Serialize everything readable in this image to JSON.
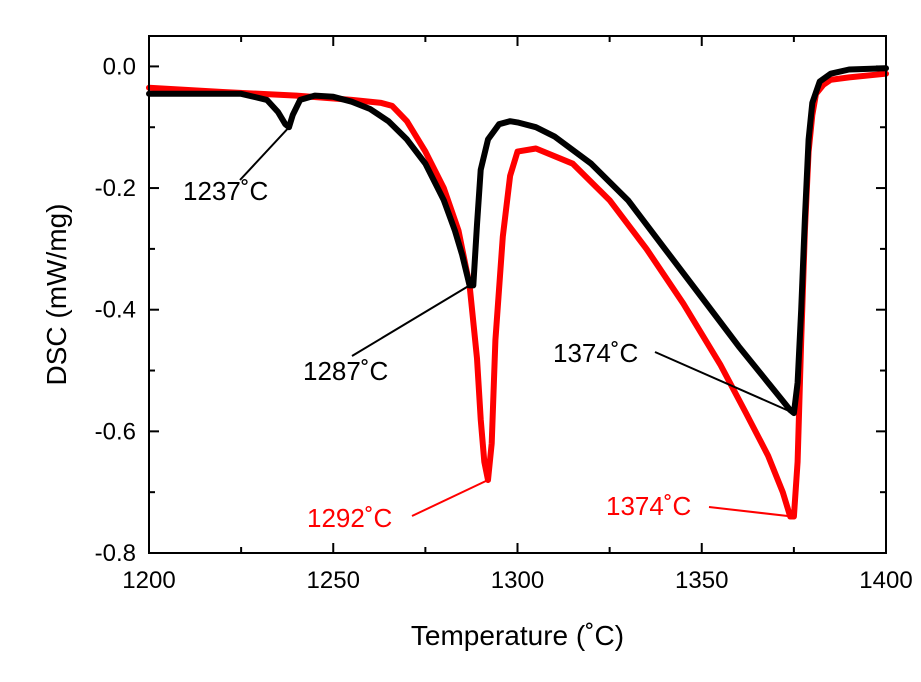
{
  "chart_data": {
    "type": "line",
    "title": "",
    "xlabel": "Temperature (˚C)",
    "ylabel": "DSC (mW/mg)",
    "xlim": [
      1200,
      1400
    ],
    "ylim": [
      -0.8,
      0.05
    ],
    "x_ticks": [
      1200,
      1250,
      1300,
      1350,
      1400
    ],
    "x_tick_labels": [
      "1200",
      "1250",
      "1300",
      "1350",
      "1400"
    ],
    "y_ticks": [
      -0.8,
      -0.6,
      -0.4,
      -0.2,
      0.0
    ],
    "y_tick_labels": [
      "-0.8",
      "-0.6",
      "-0.4",
      "-0.2",
      "0.0"
    ],
    "grid": false,
    "legend": "none",
    "series": [
      {
        "color": "#000000",
        "x": [
          1200,
          1215,
          1225,
          1232,
          1235,
          1237,
          1238,
          1239,
          1241,
          1245,
          1250,
          1255,
          1260,
          1265,
          1270,
          1275,
          1280,
          1283,
          1285,
          1287,
          1288,
          1289,
          1290,
          1292,
          1295,
          1298,
          1300,
          1305,
          1310,
          1320,
          1330,
          1340,
          1350,
          1360,
          1368,
          1372,
          1374,
          1375,
          1376,
          1377,
          1378,
          1379,
          1380,
          1382,
          1385,
          1390,
          1400
        ],
        "y": [
          -0.045,
          -0.045,
          -0.045,
          -0.055,
          -0.075,
          -0.095,
          -0.1,
          -0.08,
          -0.055,
          -0.048,
          -0.05,
          -0.058,
          -0.07,
          -0.09,
          -0.12,
          -0.16,
          -0.22,
          -0.27,
          -0.31,
          -0.36,
          -0.36,
          -0.26,
          -0.17,
          -0.12,
          -0.095,
          -0.09,
          -0.092,
          -0.1,
          -0.115,
          -0.16,
          -0.22,
          -0.3,
          -0.38,
          -0.46,
          -0.52,
          -0.55,
          -0.565,
          -0.57,
          -0.52,
          -0.4,
          -0.25,
          -0.12,
          -0.06,
          -0.025,
          -0.012,
          -0.005,
          -0.003
        ]
      },
      {
        "color": "#ff0000",
        "x": [
          1200,
          1220,
          1240,
          1255,
          1263,
          1266,
          1270,
          1275,
          1280,
          1284,
          1287,
          1289,
          1290,
          1291,
          1292,
          1293,
          1294,
          1296,
          1298,
          1300,
          1305,
          1315,
          1325,
          1335,
          1345,
          1355,
          1362,
          1368,
          1372,
          1374,
          1375,
          1376,
          1377,
          1378,
          1379,
          1380,
          1381,
          1383,
          1385,
          1390,
          1400
        ],
        "y": [
          -0.035,
          -0.042,
          -0.048,
          -0.055,
          -0.06,
          -0.065,
          -0.09,
          -0.14,
          -0.2,
          -0.27,
          -0.36,
          -0.48,
          -0.58,
          -0.65,
          -0.68,
          -0.62,
          -0.45,
          -0.28,
          -0.18,
          -0.14,
          -0.135,
          -0.16,
          -0.22,
          -0.3,
          -0.39,
          -0.49,
          -0.57,
          -0.64,
          -0.7,
          -0.74,
          -0.74,
          -0.65,
          -0.45,
          -0.27,
          -0.14,
          -0.08,
          -0.045,
          -0.03,
          -0.022,
          -0.018,
          -0.012
        ]
      }
    ],
    "annotations": [
      {
        "text": "1237˚C",
        "color": "#000000",
        "x": 1238,
        "y": -0.1
      },
      {
        "text": "1287˚C",
        "color": "#000000",
        "x": 1287,
        "y": -0.36
      },
      {
        "text": "1374˚C",
        "color": "#000000",
        "x": 1375,
        "y": -0.57
      },
      {
        "text": "1292˚C",
        "color": "#ff0000",
        "x": 1292,
        "y": -0.68
      },
      {
        "text": "1374˚C",
        "color": "#ff0000",
        "x": 1374.5,
        "y": -0.74
      }
    ]
  }
}
